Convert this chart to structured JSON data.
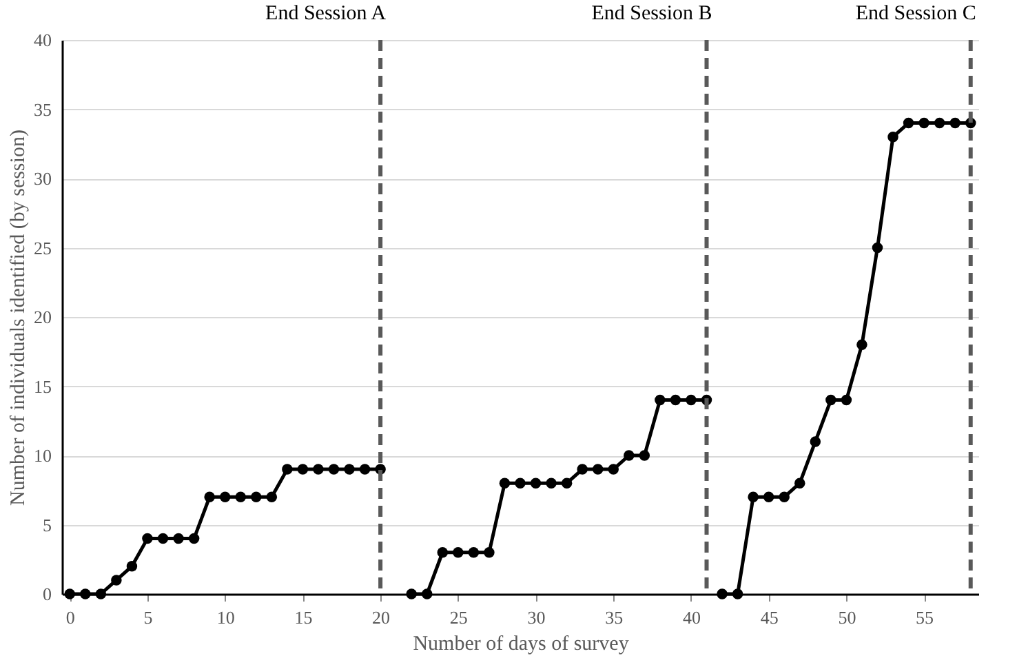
{
  "chart_data": {
    "type": "line",
    "xlabel": "Number of days of survey",
    "ylabel": "Number of individuals identified (by session)",
    "series": [
      {
        "color": "#000000",
        "x": [
          0,
          1,
          2,
          3,
          4,
          5,
          6,
          7,
          8,
          9,
          10,
          11,
          12,
          13,
          14,
          15,
          16,
          17,
          18,
          19,
          20
        ],
        "values": [
          0,
          0,
          0,
          1,
          2,
          4,
          4,
          4,
          4,
          7,
          7,
          7,
          7,
          7,
          9,
          9,
          9,
          9,
          9,
          9,
          9
        ]
      },
      {
        "color": "#000000",
        "x": [
          22,
          23,
          24,
          25,
          26,
          27,
          28,
          29,
          30,
          31,
          32,
          33,
          34,
          35,
          36,
          37,
          38,
          39,
          40,
          41
        ],
        "values": [
          0,
          0,
          3,
          3,
          3,
          3,
          8,
          8,
          8,
          8,
          8,
          9,
          9,
          9,
          10,
          10,
          14,
          14,
          14,
          14
        ]
      },
      {
        "color": "#000000",
        "x": [
          42,
          43,
          44,
          45,
          46,
          47,
          48,
          49,
          50,
          51,
          52,
          53,
          54,
          55,
          56,
          57,
          58
        ],
        "values": [
          0,
          0,
          7,
          7,
          7,
          8,
          11,
          14,
          14,
          18,
          25,
          33,
          34,
          34,
          34,
          34,
          34
        ]
      }
    ],
    "ref_lines": [
      {
        "axis": "x",
        "value": 20,
        "label": "End Session A",
        "color": "#595959",
        "line_style": "dashed"
      },
      {
        "axis": "x",
        "value": 41,
        "label": "End Session B",
        "color": "#595959",
        "line_style": "dashed"
      },
      {
        "axis": "x",
        "value": 58,
        "label": "End Session C",
        "color": "#595959",
        "line_style": "dashed"
      }
    ],
    "xlim": [
      -0.5,
      58.5
    ],
    "xticks": [
      0,
      5,
      10,
      15,
      20,
      25,
      30,
      35,
      40,
      45,
      50,
      55
    ],
    "ylim": [
      0,
      40
    ],
    "yticks": [
      0,
      5,
      10,
      15,
      20,
      25,
      30,
      35,
      40
    ],
    "grid": "y",
    "marker": "circle",
    "line_style": "solid"
  }
}
